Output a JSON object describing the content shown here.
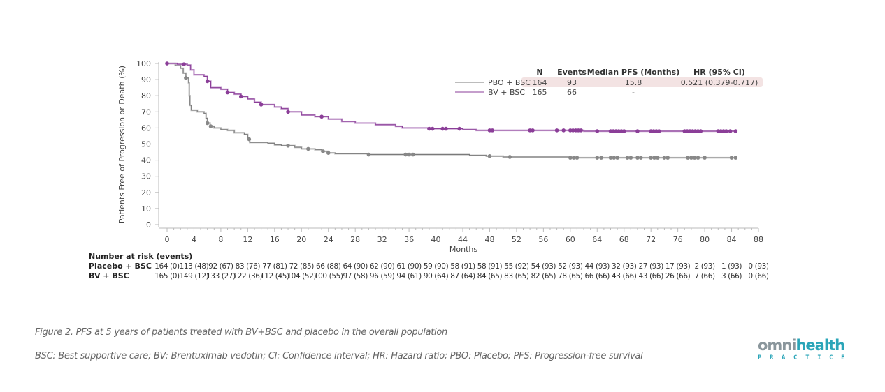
{
  "chart_data": {
    "type": "line",
    "subtype": "kaplan-meier",
    "title": "",
    "xlabel": "Months",
    "ylabel": "Patients Free of Progression or Death (%)",
    "xlim": [
      0,
      88
    ],
    "ylim": [
      0,
      100
    ],
    "x_ticks": [
      0,
      4,
      8,
      12,
      16,
      20,
      24,
      28,
      32,
      36,
      40,
      44,
      48,
      52,
      56,
      60,
      64,
      68,
      72,
      76,
      80,
      84,
      88
    ],
    "y_ticks": [
      0,
      10,
      20,
      30,
      40,
      50,
      60,
      70,
      80,
      90,
      100
    ],
    "grid": false,
    "legend_position": "top-right",
    "legend_table": {
      "headers": [
        "N",
        "Events",
        "Median PFS (Months)",
        "HR (95% CI)"
      ],
      "rows": [
        {
          "label": "PBO + BSC",
          "n": "164",
          "events": "93",
          "median": "15.8",
          "hr": "0.521 (0.379-0.717)",
          "highlight": true
        },
        {
          "label": "BV + BSC",
          "n": "165",
          "events": "66",
          "median": "-",
          "hr": "",
          "highlight": false
        }
      ],
      "highlight_color": "#f3e3e3"
    },
    "series": [
      {
        "name": "PBO + BSC",
        "color": "#7a7a7a",
        "light_color": "#c8c8c8",
        "steps": [
          [
            0,
            100
          ],
          [
            1.2,
            99
          ],
          [
            2,
            97
          ],
          [
            2.4,
            94
          ],
          [
            2.8,
            91
          ],
          [
            3.2,
            88
          ],
          [
            3.3,
            80
          ],
          [
            3.4,
            74
          ],
          [
            3.6,
            71
          ],
          [
            4.5,
            70
          ],
          [
            5.5,
            69
          ],
          [
            5.8,
            66
          ],
          [
            6,
            63
          ],
          [
            6.4,
            61
          ],
          [
            7,
            60
          ],
          [
            8,
            59
          ],
          [
            9,
            58.5
          ],
          [
            10,
            57
          ],
          [
            11.5,
            56
          ],
          [
            12,
            53
          ],
          [
            12.3,
            51
          ],
          [
            15,
            50.5
          ],
          [
            16,
            49.5
          ],
          [
            17,
            49
          ],
          [
            19,
            48
          ],
          [
            20,
            47
          ],
          [
            22,
            46.5
          ],
          [
            23,
            45.5
          ],
          [
            24,
            44.5
          ],
          [
            25,
            44
          ],
          [
            30,
            43.5
          ],
          [
            45,
            43
          ],
          [
            47.5,
            42.5
          ],
          [
            50,
            42
          ],
          [
            60,
            41.5
          ],
          [
            84.5,
            41.5
          ]
        ],
        "censor_x": [
          2.8,
          6.0,
          6.5,
          12.2,
          18,
          21,
          23.2,
          24,
          30,
          35.5,
          36,
          36.6,
          48,
          51,
          60,
          60.5,
          61,
          64,
          64.6,
          66,
          66.5,
          67,
          68.5,
          69,
          70,
          70.5,
          72,
          72.5,
          73,
          74,
          74.5,
          77.5,
          78,
          78.5,
          79,
          80,
          84,
          84.6
        ]
      },
      {
        "name": "BV + BSC",
        "color": "#8b3e98",
        "light_color": "#c9a4d2",
        "steps": [
          [
            0,
            100
          ],
          [
            1.5,
            99.5
          ],
          [
            3,
            99
          ],
          [
            3.5,
            96
          ],
          [
            4,
            93
          ],
          [
            5.5,
            92
          ],
          [
            6,
            89
          ],
          [
            6.5,
            85
          ],
          [
            8,
            84
          ],
          [
            9,
            82
          ],
          [
            10,
            81
          ],
          [
            11,
            79.5
          ],
          [
            12,
            78
          ],
          [
            13,
            76
          ],
          [
            14,
            74.5
          ],
          [
            16,
            73
          ],
          [
            17,
            72
          ],
          [
            18,
            70
          ],
          [
            20,
            68
          ],
          [
            22,
            67
          ],
          [
            24,
            65.5
          ],
          [
            26,
            64
          ],
          [
            28,
            63
          ],
          [
            31,
            62
          ],
          [
            34,
            61
          ],
          [
            35,
            60
          ],
          [
            39,
            59.5
          ],
          [
            44,
            59
          ],
          [
            46,
            58.5
          ],
          [
            48,
            58.5
          ],
          [
            62,
            58
          ],
          [
            84.6,
            58
          ]
        ],
        "censor_x": [
          0,
          2.5,
          6,
          9,
          11,
          14,
          18,
          23,
          39,
          39.5,
          41,
          41.5,
          43.5,
          48,
          48.4,
          54,
          54.4,
          58,
          59,
          60,
          60.4,
          60.8,
          61.2,
          61.6,
          64,
          66,
          66.4,
          66.8,
          67.2,
          67.6,
          68,
          70,
          72,
          72.4,
          72.8,
          73.2,
          77,
          77.4,
          77.8,
          78.2,
          78.6,
          79,
          79.4,
          82,
          82.4,
          82.8,
          83.2,
          83.8,
          84.6
        ]
      }
    ],
    "risk_table": {
      "title": "Number at risk (events)",
      "times": [
        0,
        4,
        8,
        12,
        16,
        20,
        24,
        28,
        32,
        36,
        40,
        44,
        48,
        52,
        56,
        60,
        64,
        68,
        72,
        76,
        80,
        84,
        88
      ],
      "rows": [
        {
          "label": "Placebo + BSC",
          "values": [
            "164 (0)",
            "113 (48)",
            "92 (67)",
            "83 (76)",
            "77 (81)",
            "72 (85)",
            "66 (88)",
            "64 (90)",
            "62 (90)",
            "61 (90)",
            "59 (90)",
            "58 (91)",
            "58 (91)",
            "55 (92)",
            "54 (93)",
            "52 (93)",
            "44 (93)",
            "32 (93)",
            "27 (93)",
            "17 (93)",
            "2 (93)",
            "1 (93)",
            "0 (93)"
          ]
        },
        {
          "label": "BV + BSC",
          "values": [
            "165 (0)",
            "149 (12)",
            "133 (27)",
            "122 (36)",
            "112 (45)",
            "104 (52)",
            "100 (55)",
            "97 (58)",
            "96 (59)",
            "94 (61)",
            "90 (64)",
            "87 (64)",
            "84 (65)",
            "83 (65)",
            "82 (65)",
            "78 (65)",
            "66 (66)",
            "43 (66)",
            "43 (66)",
            "26 (66)",
            "7 (66)",
            "3 (66)",
            "0 (66)"
          ]
        }
      ]
    }
  },
  "caption": {
    "title": "Figure 2. PFS at 5 years of patients treated with BV+BSC and placebo in the overall population",
    "abbreviations": "BSC: Best supportive care; BV: Brentuximab vedotin; CI: Confidence interval; HR: Hazard ratio; PBO: Placebo; PFS: Progression-free survival"
  },
  "logo": {
    "part1": "omni",
    "part2": "health",
    "subtitle": "PRACTICE",
    "icon": "plus-icon"
  }
}
